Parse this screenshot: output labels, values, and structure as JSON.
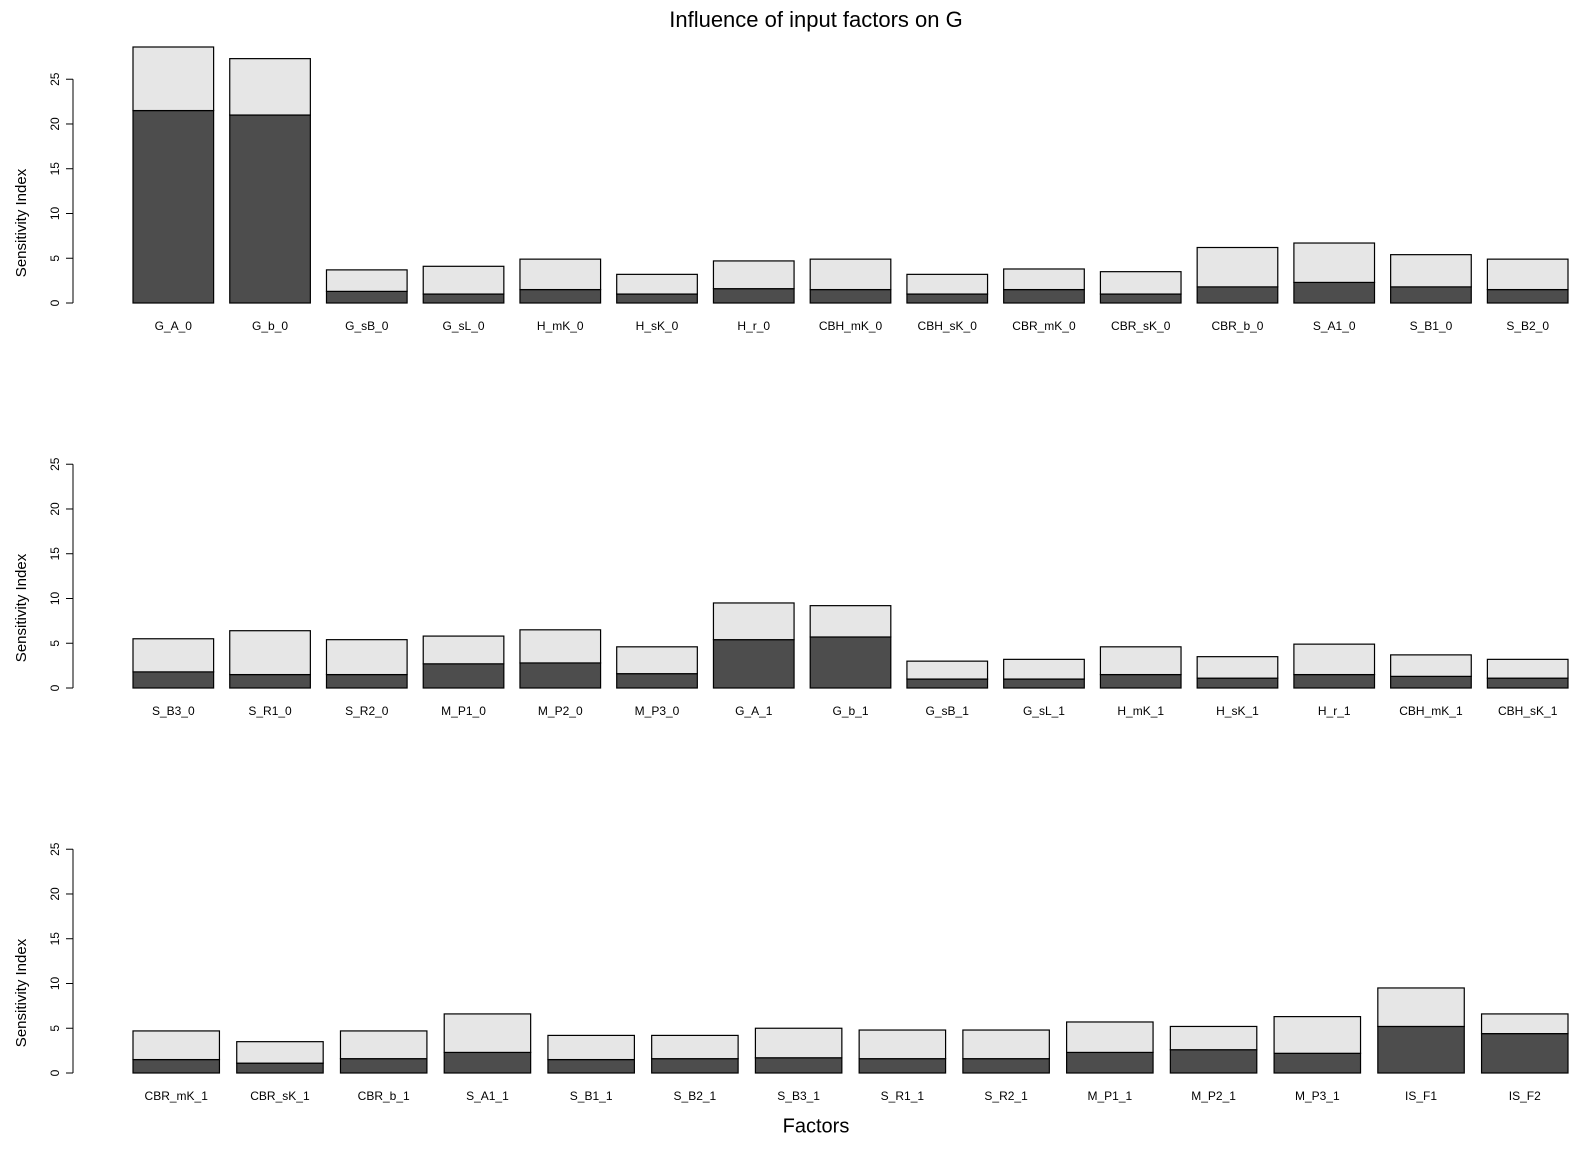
{
  "chart_data": [
    {
      "type": "stacked-bar",
      "title": "Influence of input factors on G",
      "ylabel": "Sensitivity Index",
      "categories": [
        "G_A_0",
        "G_b_0",
        "G_sB_0",
        "G_sL_0",
        "H_mK_0",
        "H_sK_0",
        "H_r_0",
        "CBH_mK_0",
        "CBH_sK_0",
        "CBR_mK_0",
        "CBR_sK_0",
        "CBR_b_0",
        "S_A1_0",
        "S_B1_0",
        "S_B2_0"
      ],
      "series": [
        {
          "color": "#4d4d4d",
          "values": [
            21.5,
            21.0,
            1.3,
            1.0,
            1.5,
            1.0,
            1.6,
            1.5,
            1.0,
            1.5,
            1.0,
            1.8,
            2.3,
            1.8,
            1.5
          ]
        },
        {
          "color": "#e6e6e6",
          "values": [
            7.1,
            6.3,
            2.4,
            3.1,
            3.4,
            2.2,
            3.1,
            3.4,
            2.2,
            2.3,
            2.5,
            4.4,
            4.4,
            3.6,
            3.4
          ]
        }
      ],
      "ylim": [
        0,
        28.6
      ],
      "yticks": [
        0,
        5,
        10,
        15,
        20,
        25
      ]
    },
    {
      "type": "stacked-bar",
      "ylabel": "Sensitivity Index",
      "categories": [
        "S_B3_0",
        "S_R1_0",
        "S_R2_0",
        "M_P1_0",
        "M_P2_0",
        "M_P3_0",
        "G_A_1",
        "G_b_1",
        "G_sB_1",
        "G_sL_1",
        "H_mK_1",
        "H_sK_1",
        "H_r_1",
        "CBH_mK_1",
        "CBH_sK_1"
      ],
      "series": [
        {
          "color": "#4d4d4d",
          "values": [
            1.8,
            1.5,
            1.5,
            2.7,
            2.8,
            1.6,
            5.4,
            5.7,
            1.0,
            1.0,
            1.5,
            1.1,
            1.5,
            1.3,
            1.1
          ]
        },
        {
          "color": "#e6e6e6",
          "values": [
            3.7,
            4.9,
            3.9,
            3.1,
            3.7,
            3.0,
            4.1,
            3.5,
            2.0,
            2.2,
            3.1,
            2.4,
            3.4,
            2.4,
            2.1
          ]
        }
      ],
      "ylim": [
        0,
        28.6
      ],
      "yticks": [
        0,
        5,
        10,
        15,
        20,
        25
      ]
    },
    {
      "type": "stacked-bar",
      "ylabel": "Sensitivity Index",
      "xlabel": "Factors",
      "categories": [
        "CBR_mK_1",
        "CBR_sK_1",
        "CBR_b_1",
        "S_A1_1",
        "S_B1_1",
        "S_B2_1",
        "S_B3_1",
        "S_R1_1",
        "S_R2_1",
        "M_P1_1",
        "M_P2_1",
        "M_P3_1",
        "IS_F1",
        "IS_F2"
      ],
      "series": [
        {
          "color": "#4d4d4d",
          "values": [
            1.5,
            1.1,
            1.6,
            2.3,
            1.5,
            1.6,
            1.7,
            1.6,
            1.6,
            2.3,
            2.6,
            2.2,
            5.2,
            4.4
          ]
        },
        {
          "color": "#e6e6e6",
          "values": [
            3.2,
            2.4,
            3.1,
            4.3,
            2.7,
            2.6,
            3.3,
            3.2,
            3.2,
            3.4,
            2.6,
            4.1,
            4.3,
            2.2
          ]
        }
      ],
      "ylim": [
        0,
        28.6
      ],
      "yticks": [
        0,
        5,
        10,
        15,
        20,
        25
      ]
    }
  ]
}
